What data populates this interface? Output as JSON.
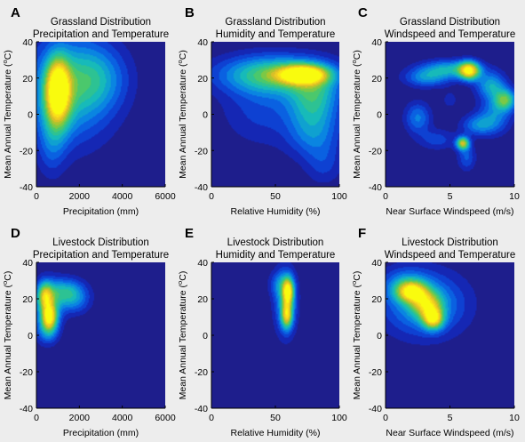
{
  "chart_data": [
    {
      "type": "heatmap",
      "letter": "A",
      "title_line1": "Grassland Distribution",
      "title_line2": "Precipitation and Temperature",
      "xlabel": "Precipitation (mm)",
      "ylabel": "Mean Annual Temperature (",
      "ylabel_unit": "o",
      "ylabel_tail": "C)",
      "xlim": [
        0,
        6000
      ],
      "ylim": [
        -40,
        40
      ],
      "xticks": [
        "0",
        "2000",
        "4000",
        "6000"
      ],
      "yticks": [
        "40",
        "20",
        "0",
        "-20",
        "-40"
      ],
      "blobs": [
        {
          "x": 1500,
          "y": 14,
          "sx": 1400,
          "sy": 20,
          "w": 0.45
        },
        {
          "x": 2800,
          "y": 20,
          "sx": 1000,
          "sy": 12,
          "w": 0.25
        },
        {
          "x": 1000,
          "y": 15,
          "sx": 380,
          "sy": 11,
          "w": 0.85
        },
        {
          "x": 950,
          "y": 2,
          "sx": 450,
          "sy": 12,
          "w": 0.3
        },
        {
          "x": 700,
          "y": -18,
          "sx": 450,
          "sy": 12,
          "w": 0.16
        }
      ]
    },
    {
      "type": "heatmap",
      "letter": "B",
      "title_line1": "Grassland Distribution",
      "title_line2": "Humidity and Temperature",
      "xlabel": "Relative Humidity (%)",
      "ylabel": "Mean Annual Temperature (",
      "ylabel_unit": "o",
      "ylabel_tail": "C)",
      "xlim": [
        0,
        100
      ],
      "ylim": [
        -40,
        40
      ],
      "xticks": [
        "0",
        "50",
        "100"
      ],
      "yticks": [
        "40",
        "20",
        "0",
        "-20",
        "-40"
      ],
      "blobs": [
        {
          "x": 72,
          "y": 22,
          "sx": 13,
          "sy": 3.5,
          "w": 0.9
        },
        {
          "x": 50,
          "y": 22,
          "sx": 30,
          "sy": 7,
          "w": 0.55
        },
        {
          "x": 80,
          "y": 10,
          "sx": 14,
          "sy": 10,
          "w": 0.45
        },
        {
          "x": 80,
          "y": -10,
          "sx": 14,
          "sy": 10,
          "w": 0.3
        },
        {
          "x": 40,
          "y": 5,
          "sx": 22,
          "sy": 15,
          "w": 0.18
        },
        {
          "x": 88,
          "y": -28,
          "sx": 10,
          "sy": 8,
          "w": 0.14
        }
      ]
    },
    {
      "type": "heatmap",
      "letter": "C",
      "title_line1": "Grassland Distribution",
      "title_line2": "Windspeed and Temperature",
      "xlabel": "Near Surface Windspeed (m/s)",
      "ylabel": "Mean Annual Temperature (",
      "ylabel_unit": "o",
      "ylabel_tail": "C)",
      "xlim": [
        0,
        10
      ],
      "ylim": [
        -40,
        40
      ],
      "xticks": [
        "0",
        "5",
        "10"
      ],
      "yticks": [
        "40",
        "20",
        "0",
        "-20",
        "-40"
      ],
      "blobs": [
        {
          "x": 6.5,
          "y": 24,
          "sx": 0.55,
          "sy": 3.5,
          "w": 0.85
        },
        {
          "x": 5.0,
          "y": 25,
          "sx": 1.6,
          "sy": 3.5,
          "w": 0.42
        },
        {
          "x": 3.2,
          "y": 20,
          "sx": 1.2,
          "sy": 3.5,
          "w": 0.32
        },
        {
          "x": 9.3,
          "y": 8,
          "sx": 0.6,
          "sy": 4,
          "w": 0.55
        },
        {
          "x": 8.2,
          "y": 16,
          "sx": 0.8,
          "sy": 5,
          "w": 0.4
        },
        {
          "x": 8.5,
          "y": 0,
          "sx": 0.9,
          "sy": 7,
          "w": 0.3
        },
        {
          "x": 7.2,
          "y": -6,
          "sx": 0.9,
          "sy": 4,
          "w": 0.3
        },
        {
          "x": 6.0,
          "y": -16,
          "sx": 0.35,
          "sy": 2.5,
          "w": 0.75
        },
        {
          "x": 6.3,
          "y": -24,
          "sx": 0.5,
          "sy": 5,
          "w": 0.22
        },
        {
          "x": 2.5,
          "y": -2,
          "sx": 0.7,
          "sy": 6,
          "w": 0.3
        },
        {
          "x": 4.0,
          "y": -14,
          "sx": 1.0,
          "sy": 4,
          "w": 0.18
        },
        {
          "x": 5.0,
          "y": 8,
          "sx": 0.5,
          "sy": 4,
          "w": 0.1
        }
      ]
    },
    {
      "type": "heatmap",
      "letter": "D",
      "title_line1": "Livestock Distribution",
      "title_line2": "Precipitation and Temperature",
      "xlabel": "Precipitation (mm)",
      "ylabel": "Mean Annual Temperature (",
      "ylabel_unit": "o",
      "ylabel_tail": "C)",
      "xlim": [
        0,
        6000
      ],
      "ylim": [
        -40,
        40
      ],
      "xticks": [
        "0",
        "2000",
        "4000",
        "6000"
      ],
      "yticks": [
        "40",
        "20",
        "0",
        "-20",
        "-40"
      ],
      "blobs": [
        {
          "x": 600,
          "y": 10,
          "sx": 250,
          "sy": 5,
          "w": 0.75
        },
        {
          "x": 400,
          "y": 22,
          "sx": 250,
          "sy": 5,
          "w": 0.55
        },
        {
          "x": 550,
          "y": 16,
          "sx": 450,
          "sy": 9,
          "w": 0.4
        },
        {
          "x": 1400,
          "y": 24,
          "sx": 600,
          "sy": 5,
          "w": 0.42
        },
        {
          "x": 1800,
          "y": 18,
          "sx": 500,
          "sy": 5,
          "w": 0.2
        },
        {
          "x": 500,
          "y": 2,
          "sx": 350,
          "sy": 5,
          "w": 0.25
        }
      ]
    },
    {
      "type": "heatmap",
      "letter": "E",
      "title_line1": "Livestock Distribution",
      "title_line2": "Humidity and Temperature",
      "xlabel": "Relative Humidity (%)",
      "ylabel": "Mean Annual Temperature (",
      "ylabel_unit": "o",
      "ylabel_tail": "C)",
      "xlim": [
        0,
        100
      ],
      "ylim": [
        -40,
        40
      ],
      "xticks": [
        "0",
        "50",
        "100"
      ],
      "yticks": [
        "40",
        "20",
        "0",
        "-20",
        "-40"
      ],
      "blobs": [
        {
          "x": 60,
          "y": 24,
          "sx": 3,
          "sy": 5,
          "w": 0.75
        },
        {
          "x": 59,
          "y": 11,
          "sx": 3,
          "sy": 5,
          "w": 0.65
        },
        {
          "x": 58,
          "y": 18,
          "sx": 6,
          "sy": 12,
          "w": 0.4
        },
        {
          "x": 54,
          "y": 28,
          "sx": 6,
          "sy": 5,
          "w": 0.22
        }
      ]
    },
    {
      "type": "heatmap",
      "letter": "F",
      "title_line1": "Livestock Distribution",
      "title_line2": "Windspeed and Temperature",
      "xlabel": "Near Surface Windspeed (m/s)",
      "ylabel": "Mean Annual Temperature (",
      "ylabel_unit": "o",
      "ylabel_tail": "C)",
      "xlim": [
        0,
        10
      ],
      "ylim": [
        -40,
        40
      ],
      "xticks": [
        "0",
        "5",
        "10"
      ],
      "yticks": [
        "40",
        "20",
        "0",
        "-20",
        "-40"
      ],
      "blobs": [
        {
          "x": 2.0,
          "y": 24,
          "sx": 0.8,
          "sy": 4,
          "w": 0.7
        },
        {
          "x": 3.2,
          "y": 17,
          "sx": 0.8,
          "sy": 5,
          "w": 0.55
        },
        {
          "x": 3.7,
          "y": 9,
          "sx": 0.55,
          "sy": 4,
          "w": 0.75
        },
        {
          "x": 3.0,
          "y": 17,
          "sx": 2.2,
          "sy": 12,
          "w": 0.4
        },
        {
          "x": 1.5,
          "y": 28,
          "sx": 1.2,
          "sy": 6,
          "w": 0.22
        }
      ]
    }
  ]
}
